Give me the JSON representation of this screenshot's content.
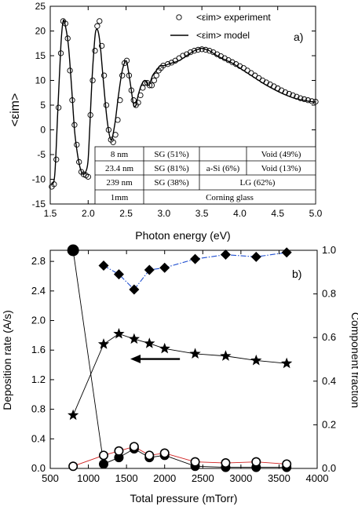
{
  "chart_data": [
    {
      "type": "scatter",
      "panel_label": "a)",
      "ylabel": "<εim>",
      "xlabel": "Photon energy (eV)",
      "xlim": [
        1.5,
        5.0
      ],
      "ylim": [
        -15,
        25
      ],
      "xticks": [
        "1.5",
        "2.0",
        "2.5",
        "3.0",
        "3.5",
        "4.0",
        "4.5",
        "5.0"
      ],
      "yticks": [
        "-15",
        "-10",
        "-5",
        "0",
        "5",
        "10",
        "15",
        "20",
        "25"
      ],
      "legend": {
        "position": "top-right",
        "experiment": "<εim> experiment",
        "model": "<εim> model"
      },
      "series": [
        {
          "name": "<εim> model",
          "style": "line",
          "x": [
            1.52,
            1.56,
            1.6,
            1.64,
            1.67,
            1.7,
            1.74,
            1.78,
            1.82,
            1.86,
            1.9,
            1.94,
            1.98,
            2.0,
            2.02,
            2.05,
            2.08,
            2.1,
            2.13,
            2.16,
            2.2,
            2.25,
            2.3,
            2.35,
            2.4,
            2.45,
            2.5,
            2.53,
            2.56,
            2.6,
            2.63,
            2.66,
            2.7,
            2.75,
            2.8,
            2.85,
            2.9,
            2.95,
            3.0,
            3.1,
            3.2,
            3.3,
            3.4,
            3.45,
            3.5,
            3.55,
            3.6,
            3.7,
            3.8,
            3.9,
            4.0,
            4.1,
            4.2,
            4.3,
            4.4,
            4.5,
            4.6,
            4.7,
            4.8,
            4.9,
            5.0
          ],
          "y": [
            -11,
            -9,
            4,
            17,
            22,
            21,
            17,
            9,
            0,
            -5,
            -8,
            -9,
            -8,
            -6,
            0,
            10,
            17,
            20,
            20,
            17,
            10,
            2,
            -2,
            1,
            7,
            12,
            14,
            12,
            9,
            5,
            5,
            7,
            9,
            10,
            9,
            11,
            12,
            13,
            13,
            13.5,
            14,
            15,
            16,
            16.3,
            16.5,
            16.3,
            16,
            15,
            14.2,
            13.5,
            12.5,
            11.5,
            10.5,
            9.5,
            8.6,
            7.8,
            7.1,
            6.5,
            6.1,
            5.8,
            5.6
          ]
        },
        {
          "name": "<εim> experiment",
          "style": "open-circle",
          "x": [
            1.52,
            1.55,
            1.58,
            1.61,
            1.64,
            1.67,
            1.7,
            1.73,
            1.76,
            1.79,
            1.82,
            1.85,
            1.88,
            1.91,
            1.94,
            1.97,
            2.0,
            2.03,
            2.06,
            2.09,
            2.12,
            2.15,
            2.18,
            2.21,
            2.24,
            2.27,
            2.3,
            2.33,
            2.36,
            2.39,
            2.42,
            2.45,
            2.48,
            2.51,
            2.54,
            2.57,
            2.6,
            2.63,
            2.66,
            2.69,
            2.72,
            2.75,
            2.78,
            2.81,
            2.84,
            2.87,
            2.9,
            2.93,
            2.96,
            2.99,
            3.05,
            3.1,
            3.15,
            3.2,
            3.25,
            3.3,
            3.35,
            3.4,
            3.45,
            3.5,
            3.55,
            3.6,
            3.65,
            3.7,
            3.75,
            3.8,
            3.85,
            3.9,
            3.95,
            4.0,
            4.05,
            4.1,
            4.15,
            4.2,
            4.25,
            4.3,
            4.35,
            4.4,
            4.45,
            4.5,
            4.55,
            4.6,
            4.65,
            4.7,
            4.75,
            4.8,
            4.85,
            4.9,
            4.95,
            5.0
          ],
          "y": [
            -11.5,
            -11,
            -6,
            4.5,
            15.5,
            22,
            21.5,
            18.5,
            12,
            6,
            1,
            -3,
            -6.5,
            -8.5,
            -9,
            -9.2,
            -9.5,
            3,
            10,
            16,
            21,
            22,
            17,
            11,
            5,
            0,
            -2,
            -2.5,
            -1,
            2,
            6,
            11,
            13.5,
            14,
            11,
            8,
            6,
            5,
            5.5,
            7,
            8.5,
            9.5,
            9.5,
            9,
            9,
            10,
            11,
            12,
            12.5,
            13,
            13.3,
            13.6,
            14,
            14.5,
            15,
            15.3,
            15.7,
            16,
            16.2,
            16.3,
            16.2,
            16,
            15.7,
            15.3,
            14.9,
            14.5,
            14.1,
            13.7,
            13.3,
            12.9,
            12.5,
            12,
            11.5,
            11,
            10.5,
            10,
            9.6,
            9.2,
            8.8,
            8.4,
            8,
            7.6,
            7.3,
            7,
            6.7,
            6.4,
            6.2,
            6,
            5.8,
            5.7
          ]
        }
      ],
      "table": {
        "rows": [
          [
            "8 nm",
            "SG (51%)",
            "",
            "Void (49%)"
          ],
          [
            "23.4 nm",
            "SG (81%)",
            "a-Si (6%)",
            "Void (13%)"
          ],
          [
            "239 nm",
            "SG (38%)",
            "LG (62%)"
          ],
          [
            "1mm",
            "Corning glass"
          ]
        ]
      }
    },
    {
      "type": "line",
      "panel_label": "b)",
      "xlabel": "Total pressure (mTorr)",
      "ylabel": "Deposition rate (A/s)",
      "ylabel_right": "Component fraction",
      "xlim": [
        500,
        4000
      ],
      "ylim": [
        0,
        2.95
      ],
      "ylim_right": [
        0,
        1.0
      ],
      "xticks": [
        "500",
        "1000",
        "1500",
        "2000",
        "2500",
        "3000",
        "3500",
        "4000"
      ],
      "yticks": [
        "0.0",
        "0.4",
        "0.8",
        "1.2",
        "1.6",
        "2.0",
        "2.4",
        "2.8"
      ],
      "yticks_right": [
        "0.0",
        "0.2",
        "0.4",
        "0.6",
        "0.8",
        "1.0"
      ],
      "series": [
        {
          "name": "",
          "marker": "star",
          "axis": "left",
          "color": "#000000",
          "dash": "none",
          "x": [
            800,
            1200,
            1400,
            1600,
            1800,
            2000,
            2400,
            2800,
            3200,
            3600
          ],
          "y": [
            0.72,
            1.68,
            1.82,
            1.75,
            1.69,
            1.62,
            1.55,
            1.52,
            1.46,
            1.42
          ]
        },
        {
          "name": "",
          "marker": "diamond",
          "axis": "right",
          "color": "#1f4fd0",
          "dash": "dashdot",
          "x": [
            1200,
            1400,
            1600,
            1800,
            2000,
            2400,
            2800,
            3200,
            3600
          ],
          "y": [
            0.93,
            0.89,
            0.82,
            0.91,
            0.92,
            0.96,
            0.98,
            0.97,
            0.99
          ]
        },
        {
          "name": "",
          "marker": "filled-circle",
          "axis": "right",
          "color": "#000000",
          "dash": "none",
          "x": [
            800,
            1200,
            1400,
            1600,
            1800,
            2000,
            2400,
            2800,
            3200,
            3600
          ],
          "y": [
            1.0,
            0.02,
            0.05,
            0.09,
            0.05,
            0.06,
            0.01,
            0.005,
            0.005,
            0.005
          ]
        },
        {
          "name": "",
          "marker": "open-circle",
          "axis": "right",
          "color": "#d02020",
          "dash": "solid",
          "x": [
            800,
            1200,
            1400,
            1600,
            1800,
            2000,
            2400,
            2800,
            3200,
            3600
          ],
          "y": [
            0.01,
            0.06,
            0.08,
            0.1,
            0.06,
            0.07,
            0.03,
            0.025,
            0.03,
            0.02
          ]
        }
      ],
      "annotation": {
        "type": "arrow",
        "direction": "left",
        "from": [
          2200,
          1.48
        ],
        "to": [
          1550,
          1.48
        ]
      }
    }
  ]
}
